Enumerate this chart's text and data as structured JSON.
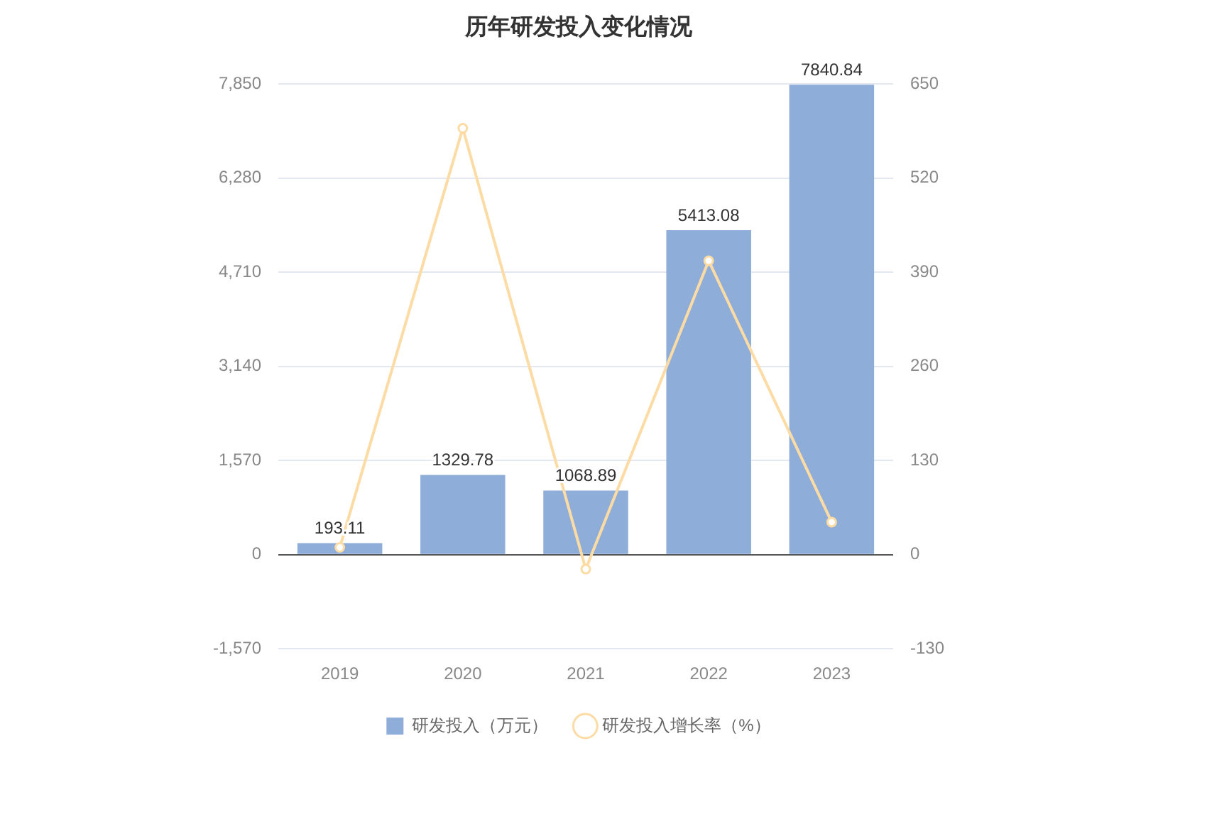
{
  "chart_data": {
    "type": "bar",
    "title": "历年研发投入变化情况",
    "categories": [
      "2019",
      "2020",
      "2021",
      "2022",
      "2023"
    ],
    "series": [
      {
        "name": "研发投入（万元）",
        "color": "#8eadd9",
        "values": [
          193.11,
          1329.78,
          1068.89,
          5413.08,
          7840.84
        ],
        "value_labels": [
          "193.11",
          "1329.78",
          "1068.89",
          "5413.08",
          "7840.84"
        ]
      },
      {
        "name": "研发投入增长率（%）",
        "type": "line",
        "axis": "y2",
        "color": "#fcdba4",
        "values": [
          10,
          589,
          -20,
          406,
          45
        ],
        "marker": "circle"
      }
    ],
    "ylim": [
      -1570,
      7850
    ],
    "yticks": [
      {
        "value": -1570,
        "label": "-1,570"
      },
      0,
      {
        "value": 1570,
        "label": "1,570"
      },
      {
        "value": 3140,
        "label": "3,140"
      },
      {
        "value": 4710,
        "label": "4,710"
      },
      {
        "value": 6280,
        "label": "6,280"
      },
      {
        "value": 7850,
        "label": "7,850"
      }
    ],
    "y2lim": [
      -130,
      650
    ],
    "y2ticks": [
      -130,
      0,
      130,
      260,
      390,
      520,
      650
    ],
    "grid": "y",
    "legend": "bottom"
  }
}
